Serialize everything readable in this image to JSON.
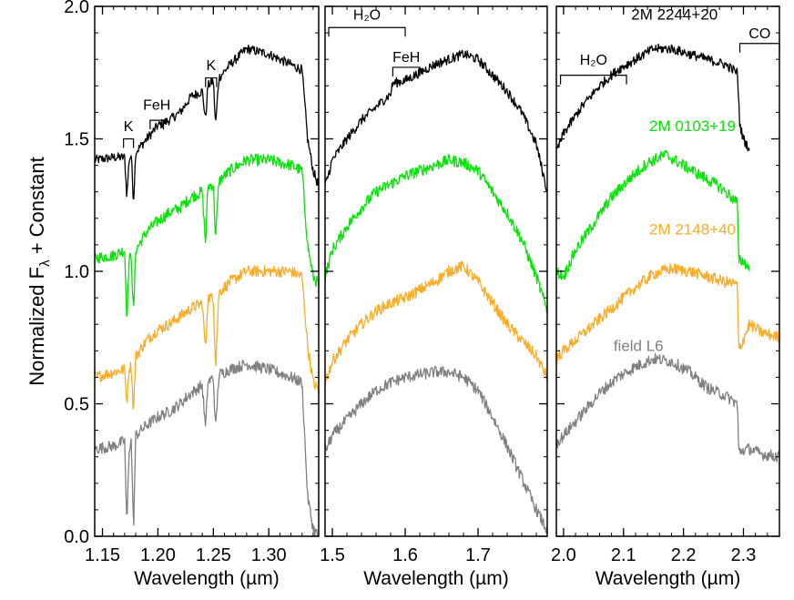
{
  "chart_data": {
    "type": "line",
    "ylabel_prefix": "Normalized F",
    "ylabel_sub": "λ",
    "ylabel_suffix": " + Constant",
    "ylim": [
      0.0,
      2.0
    ],
    "yticks": [
      0.0,
      0.5,
      1.0,
      1.5,
      2.0
    ],
    "ytick_labels": [
      "0.0",
      "0.5",
      "1.0",
      "1.5",
      "2.0"
    ],
    "xlabel": "Wavelength (µm)",
    "colors": {
      "black": "#000000",
      "green": "#00e600",
      "orange": "#ffaa22",
      "gray": "#808080"
    },
    "panels": [
      {
        "name": "J band",
        "xlim": [
          1.143,
          1.345
        ],
        "xticks": [
          1.15,
          1.2,
          1.25,
          1.3
        ],
        "xtick_labels": [
          "1.15",
          "1.20",
          "1.25",
          "1.30"
        ],
        "series": [
          {
            "color": "black",
            "x": [
              1.143,
              1.16,
              1.17,
              1.172,
              1.174,
              1.176,
              1.178,
              1.18,
              1.19,
              1.2,
              1.21,
              1.22,
              1.23,
              1.24,
              1.243,
              1.245,
              1.25,
              1.252,
              1.255,
              1.265,
              1.28,
              1.3,
              1.32,
              1.33,
              1.335,
              1.34,
              1.345
            ],
            "y": [
              1.42,
              1.43,
              1.43,
              1.28,
              1.42,
              1.44,
              1.26,
              1.45,
              1.5,
              1.55,
              1.57,
              1.6,
              1.66,
              1.68,
              1.57,
              1.7,
              1.72,
              1.55,
              1.73,
              1.78,
              1.84,
              1.82,
              1.78,
              1.76,
              1.5,
              1.38,
              1.32
            ]
          },
          {
            "color": "green",
            "x": [
              1.143,
              1.16,
              1.17,
              1.172,
              1.174,
              1.176,
              1.178,
              1.18,
              1.19,
              1.2,
              1.21,
              1.22,
              1.23,
              1.24,
              1.243,
              1.245,
              1.25,
              1.252,
              1.255,
              1.265,
              1.28,
              1.3,
              1.32,
              1.33,
              1.335,
              1.34,
              1.345
            ],
            "y": [
              1.05,
              1.06,
              1.08,
              0.82,
              1.04,
              1.06,
              0.83,
              1.08,
              1.15,
              1.19,
              1.22,
              1.24,
              1.28,
              1.3,
              1.1,
              1.32,
              1.33,
              1.12,
              1.34,
              1.38,
              1.42,
              1.42,
              1.4,
              1.38,
              1.1,
              0.98,
              0.95
            ]
          },
          {
            "color": "orange",
            "x": [
              1.143,
              1.16,
              1.17,
              1.172,
              1.174,
              1.176,
              1.178,
              1.18,
              1.19,
              1.2,
              1.21,
              1.22,
              1.23,
              1.24,
              1.243,
              1.245,
              1.25,
              1.252,
              1.255,
              1.265,
              1.28,
              1.3,
              1.32,
              1.33,
              1.335,
              1.34,
              1.345
            ],
            "y": [
              0.6,
              0.62,
              0.63,
              0.5,
              0.64,
              0.64,
              0.47,
              0.68,
              0.74,
              0.78,
              0.8,
              0.83,
              0.86,
              0.88,
              0.7,
              0.9,
              0.9,
              0.64,
              0.92,
              0.96,
              1.0,
              1.0,
              1.0,
              0.98,
              0.72,
              0.58,
              0.55
            ]
          },
          {
            "color": "gray",
            "x": [
              1.143,
              1.16,
              1.17,
              1.172,
              1.174,
              1.176,
              1.178,
              1.18,
              1.19,
              1.2,
              1.21,
              1.22,
              1.23,
              1.24,
              1.243,
              1.245,
              1.25,
              1.252,
              1.255,
              1.265,
              1.28,
              1.3,
              1.32,
              1.33,
              1.335,
              1.34,
              1.345
            ],
            "y": [
              0.33,
              0.34,
              0.36,
              0.03,
              0.33,
              0.36,
              0.02,
              0.38,
              0.42,
              0.45,
              0.47,
              0.5,
              0.54,
              0.57,
              0.4,
              0.58,
              0.6,
              0.4,
              0.61,
              0.63,
              0.65,
              0.63,
              0.6,
              0.58,
              0.15,
              0.03,
              0.0
            ]
          }
        ],
        "annotations": [
          {
            "label": "K",
            "x1": 1.169,
            "x2": 1.178,
            "y_bar": 1.5,
            "y_text": 1.53
          },
          {
            "label": "FeH",
            "x1": 1.193,
            "x2": 1.205,
            "y_bar": 1.57,
            "y_text": 1.61
          },
          {
            "label": "K",
            "x1": 1.243,
            "x2": 1.253,
            "y_bar": 1.73,
            "y_text": 1.76
          }
        ]
      },
      {
        "name": "H band",
        "xlim": [
          1.49,
          1.795
        ],
        "xticks": [
          1.5,
          1.6,
          1.7
        ],
        "xtick_labels": [
          "1.5",
          "1.6",
          "1.7"
        ],
        "series": [
          {
            "color": "black",
            "x": [
              1.49,
              1.5,
              1.52,
              1.54,
              1.56,
              1.58,
              1.583,
              1.6,
              1.62,
              1.64,
              1.66,
              1.68,
              1.7,
              1.72,
              1.74,
              1.76,
              1.78,
              1.795
            ],
            "y": [
              1.32,
              1.42,
              1.5,
              1.57,
              1.62,
              1.67,
              1.71,
              1.72,
              1.75,
              1.78,
              1.8,
              1.82,
              1.8,
              1.74,
              1.68,
              1.6,
              1.48,
              1.3
            ]
          },
          {
            "color": "green",
            "x": [
              1.49,
              1.5,
              1.52,
              1.54,
              1.56,
              1.58,
              1.6,
              1.62,
              1.64,
              1.66,
              1.68,
              1.7,
              1.72,
              1.74,
              1.76,
              1.78,
              1.795
            ],
            "y": [
              0.98,
              1.08,
              1.17,
              1.24,
              1.3,
              1.33,
              1.36,
              1.38,
              1.4,
              1.42,
              1.41,
              1.38,
              1.3,
              1.22,
              1.12,
              0.98,
              0.85
            ]
          },
          {
            "color": "orange",
            "x": [
              1.49,
              1.5,
              1.52,
              1.54,
              1.56,
              1.58,
              1.6,
              1.62,
              1.64,
              1.66,
              1.68,
              1.7,
              1.72,
              1.74,
              1.76,
              1.78,
              1.795
            ],
            "y": [
              0.58,
              0.66,
              0.74,
              0.8,
              0.85,
              0.88,
              0.9,
              0.93,
              0.96,
              1.0,
              1.02,
              0.96,
              0.88,
              0.8,
              0.74,
              0.68,
              0.6
            ]
          },
          {
            "color": "gray",
            "x": [
              1.49,
              1.5,
              1.52,
              1.54,
              1.56,
              1.58,
              1.6,
              1.62,
              1.64,
              1.66,
              1.68,
              1.7,
              1.72,
              1.74,
              1.76,
              1.78,
              1.795
            ],
            "y": [
              0.32,
              0.38,
              0.44,
              0.5,
              0.55,
              0.58,
              0.6,
              0.61,
              0.62,
              0.62,
              0.6,
              0.55,
              0.45,
              0.34,
              0.22,
              0.1,
              0.02
            ]
          }
        ],
        "annotations": [
          {
            "label": "H₂O",
            "x1": 1.495,
            "x2": 1.6,
            "y_bar": 1.92,
            "y_text": 1.95
          },
          {
            "label": "FeH",
            "x1": 1.583,
            "x2": 1.62,
            "y_bar": 1.77,
            "y_text": 1.79
          }
        ]
      },
      {
        "name": "K band",
        "xlim": [
          1.988,
          2.36
        ],
        "xticks": [
          2.0,
          2.1,
          2.2,
          2.3
        ],
        "xtick_labels": [
          "2.0",
          "2.1",
          "2.2",
          "2.3"
        ],
        "series": [
          {
            "color": "black",
            "x": [
              1.988,
              2.0,
              2.03,
              2.06,
              2.09,
              2.12,
              2.15,
              2.18,
              2.21,
              2.24,
              2.27,
              2.29,
              2.294,
              2.3,
              2.31
            ],
            "y": [
              1.45,
              1.52,
              1.62,
              1.7,
              1.76,
              1.8,
              1.84,
              1.84,
              1.82,
              1.8,
              1.78,
              1.75,
              1.55,
              1.5,
              1.46
            ]
          },
          {
            "color": "green",
            "x": [
              1.988,
              2.0,
              2.02,
              2.05,
              2.08,
              2.11,
              2.14,
              2.17,
              2.2,
              2.23,
              2.26,
              2.29,
              2.292,
              2.3,
              2.31
            ],
            "y": [
              1.0,
              0.98,
              1.08,
              1.18,
              1.28,
              1.35,
              1.41,
              1.44,
              1.4,
              1.36,
              1.32,
              1.26,
              1.04,
              1.04,
              1.01
            ]
          },
          {
            "color": "orange",
            "x": [
              1.988,
              2.0,
              2.03,
              2.06,
              2.09,
              2.12,
              2.15,
              2.18,
              2.21,
              2.24,
              2.27,
              2.29,
              2.292,
              2.31,
              2.33,
              2.36
            ],
            "y": [
              0.67,
              0.7,
              0.76,
              0.82,
              0.88,
              0.94,
              0.99,
              1.01,
              1.0,
              0.98,
              0.96,
              0.95,
              0.7,
              0.8,
              0.77,
              0.75
            ]
          },
          {
            "color": "gray",
            "x": [
              1.988,
              2.0,
              2.03,
              2.06,
              2.09,
              2.12,
              2.15,
              2.18,
              2.21,
              2.24,
              2.27,
              2.29,
              2.292,
              2.31,
              2.33,
              2.36
            ],
            "y": [
              0.35,
              0.38,
              0.46,
              0.54,
              0.6,
              0.64,
              0.67,
              0.66,
              0.62,
              0.56,
              0.53,
              0.5,
              0.32,
              0.33,
              0.31,
              0.3
            ]
          }
        ],
        "annotations": [
          {
            "label": "H₂O",
            "x1": 1.995,
            "x2": 2.105,
            "y_bar": 1.74,
            "y_text": 1.78
          },
          {
            "label": "CO",
            "x1": 2.294,
            "x2": 2.36,
            "y_bar": 1.86,
            "y_text": 1.88
          }
        ],
        "labels": [
          {
            "text": "2M 2244+20",
            "color": "black",
            "x": 2.185,
            "y": 1.95
          },
          {
            "text": "2M 0103+19",
            "color": "green",
            "x": 2.215,
            "y": 1.53
          },
          {
            "text": "2M 2148+40",
            "color": "orange",
            "x": 2.215,
            "y": 1.14
          },
          {
            "text": "field L6",
            "color": "gray",
            "x": 2.125,
            "y": 0.7
          }
        ]
      }
    ]
  }
}
